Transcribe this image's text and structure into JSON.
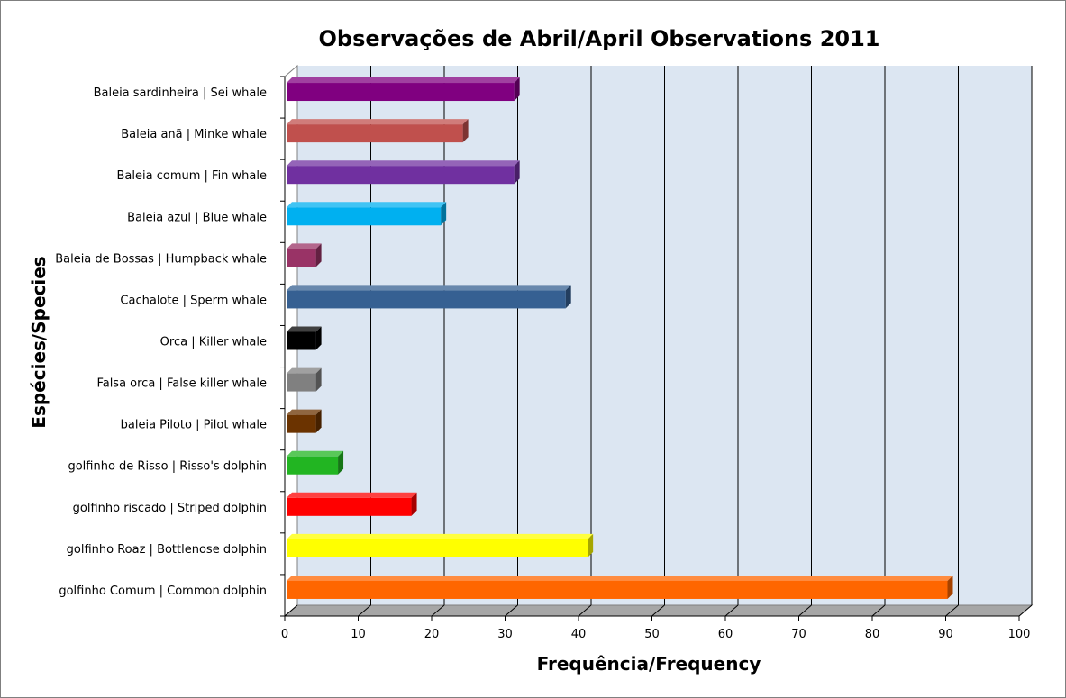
{
  "chart_data": {
    "type": "bar",
    "orientation": "horizontal",
    "title": "Observações de Abril/April Observations 2011",
    "xlabel": "Frequência/Frequency",
    "ylabel": "Espécies/Species",
    "xlim": [
      0,
      100
    ],
    "xticks": [
      "0",
      "10",
      "20",
      "30",
      "40",
      "50",
      "60",
      "70",
      "80",
      "90",
      "100"
    ],
    "grid": true,
    "legend": "none",
    "categories": [
      "golfinho Comum | Common dolphin",
      "golfinho Roaz | Bottlenose  dolphin",
      "golfinho riscado | Striped dolphin",
      "golfinho de Risso | Risso's dolphin",
      "baleia Piloto | Pilot whale",
      "Falsa orca | False killer whale",
      "Orca | Killer whale",
      "Cachalote | Sperm whale",
      "Baleia de Bossas | Humpback whale",
      "Baleia azul | Blue whale",
      "Baleia comum | Fin whale",
      "Baleia anã | Minke whale",
      "Baleia sardinheira | Sei whale"
    ],
    "values": [
      90,
      41,
      17,
      7,
      4,
      4,
      4,
      38,
      4,
      21,
      31,
      24,
      31
    ],
    "colors": [
      "#ff6600",
      "#ffff00",
      "#ff0000",
      "#22b522",
      "#6b3300",
      "#808080",
      "#000000",
      "#366092",
      "#993366",
      "#00b0f0",
      "#7030a0",
      "#c0504d",
      "#800080"
    ]
  }
}
